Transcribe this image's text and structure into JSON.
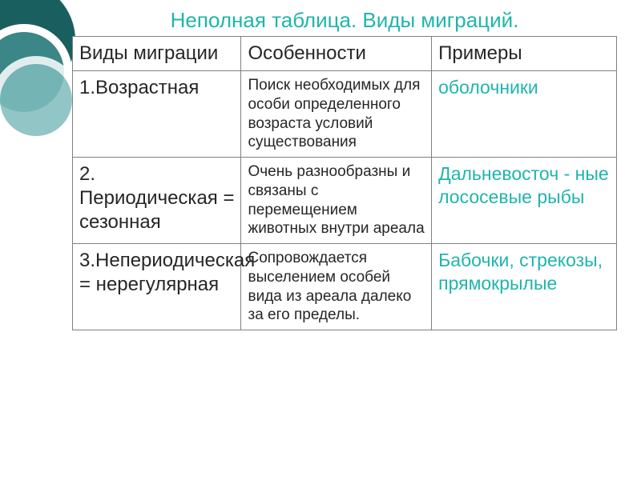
{
  "title": {
    "text": "Неполная таблица. Виды миграций.",
    "color": "#1fb5ac"
  },
  "table": {
    "border_color": "#808080",
    "headers": {
      "col1": "Виды миграции",
      "col2": "Особенности",
      "col3": "Примеры",
      "color": "#262626",
      "fontsize": 24
    },
    "rows": [
      {
        "type": "1.Возрастная",
        "features": "Поиск необходимых для особи определенного возраста условий существования",
        "example": "оболочники",
        "example_color": "#1fb5ac"
      },
      {
        "type": "2. Периодическая = сезонная",
        "features": "Очень разнообразны и связаны с перемещением животных внутри ареала",
        "example": "Дальневосточ - ные лососевые рыбы",
        "example_color": "#1fb5ac"
      },
      {
        "type": "3.Непериодическая = нерегулярная",
        "features": "Сопровождается выселением особей вида из ареала далеко за его пределы.",
        "example": "Бабочки, стрекозы, прямокрылые",
        "example_color": "#1fb5ac"
      }
    ],
    "type_fontsize": 24,
    "features_fontsize": 19,
    "example_fontsize": 23
  },
  "decoration": {
    "colors": [
      "#1a5f5f",
      "#3b8686",
      "#7fbdbd"
    ],
    "ring_border": "#ffffff"
  },
  "background_color": "#ffffff"
}
